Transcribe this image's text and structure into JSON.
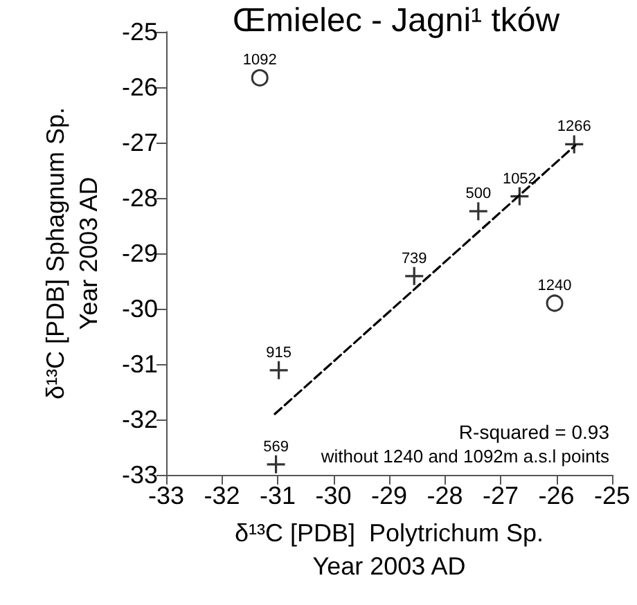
{
  "chart_data": {
    "type": "scatter",
    "title": "Œmielec - Jagni¹ tków",
    "xlabel": "δ¹³C [PDB]  Polytrichum Sp.\nYear 2003 AD",
    "ylabel": "δ¹³C [PDB] Sphagnum Sp.\nYear 2003 AD",
    "xlim": [
      -33,
      -25
    ],
    "xticks": [
      -33,
      -32,
      -31,
      -30,
      -29,
      -28,
      -27,
      -26,
      -25
    ],
    "ylim": [
      -33,
      -25
    ],
    "yticks": [
      -33,
      -32,
      -31,
      -30,
      -29,
      -28,
      -27,
      -26,
      -25
    ],
    "grid": false,
    "series": [
      {
        "marker": "cross",
        "color": "#000000",
        "x": [
          -31.03,
          -30.98,
          -28.55,
          -27.4,
          -26.66,
          -25.68
        ],
        "values": [
          -32.81,
          -31.11,
          -29.41,
          -28.24,
          -27.97,
          -27.03
        ]
      },
      {
        "marker": "circle",
        "color": "#000000",
        "x": [
          -31.32,
          -26.03
        ],
        "values": [
          -25.83,
          -29.9
        ]
      },
      {
        "type": "line",
        "marker": "none",
        "line_style": "dashed",
        "color": "#000000",
        "x": [
          -31.05,
          -25.66
        ],
        "values": [
          -31.9,
          -27.05
        ]
      }
    ],
    "annotations": [
      "R-squared = 0.93",
      "without 1240 and 1092m a.s.l points",
      {
        "text": "569",
        "x": -31.03,
        "y": -32.81
      },
      {
        "text": "915",
        "x": -30.98,
        "y": -31.11
      },
      {
        "text": "739",
        "x": -28.55,
        "y": -29.41
      },
      {
        "text": "500",
        "x": -27.4,
        "y": -28.24
      },
      {
        "text": "1052",
        "x": -26.66,
        "y": -27.97
      },
      {
        "text": "1266",
        "x": -25.68,
        "y": -27.03
      },
      {
        "text": "1092",
        "x": -31.32,
        "y": -25.83
      },
      {
        "text": "1240",
        "x": -26.03,
        "y": -29.9
      }
    ]
  }
}
